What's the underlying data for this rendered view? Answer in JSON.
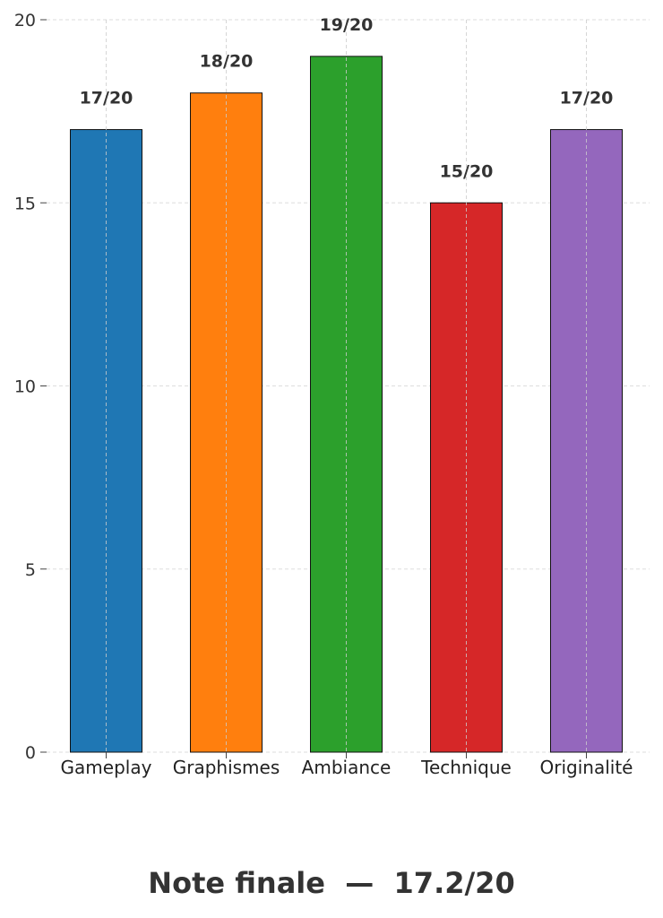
{
  "chart_data": {
    "type": "bar",
    "categories": [
      "Gameplay",
      "Graphismes",
      "Ambiance",
      "Technique",
      "Originalité"
    ],
    "values": [
      17,
      18,
      19,
      15,
      17
    ],
    "value_labels": [
      "17/20",
      "18/20",
      "19/20",
      "15/20",
      "17/20"
    ],
    "colors": [
      "#1f77b4",
      "#ff7f0e",
      "#2ca02c",
      "#d62728",
      "#9467bd"
    ],
    "yticks": [
      "0",
      "5",
      "10",
      "15",
      "20"
    ],
    "ylim": [
      0,
      20
    ],
    "grid": true,
    "title": "",
    "xlabel": "",
    "ylabel": ""
  },
  "footer": {
    "note": "Note finale  —  17.2/20"
  }
}
